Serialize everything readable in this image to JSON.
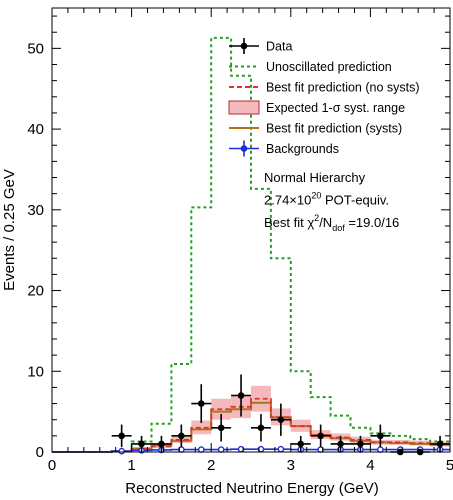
{
  "chart_data": {
    "type": "histogram",
    "xlabel": "Reconstructed Neutrino Energy (GeV)",
    "ylabel": "Events / 0.25 GeV",
    "xlim": [
      0,
      5
    ],
    "ylim": [
      0,
      55
    ],
    "xticks": [
      0,
      1,
      2,
      3,
      4,
      5
    ],
    "yticks": [
      0,
      10,
      20,
      30,
      40,
      50
    ],
    "bin_width": 0.25,
    "bin_edges": [
      0,
      0.25,
      0.5,
      0.75,
      1.0,
      1.25,
      1.5,
      1.75,
      2.0,
      2.25,
      2.5,
      2.75,
      3.0,
      3.25,
      3.5,
      3.75,
      4.0,
      4.25,
      4.5,
      4.75,
      5.0
    ],
    "series": [
      {
        "name": "Data",
        "style": "points",
        "color": "#000000",
        "x": [
          0.875,
          1.125,
          1.375,
          1.625,
          1.875,
          2.125,
          2.375,
          2.625,
          2.875,
          3.125,
          3.375,
          3.625,
          3.875,
          4.125,
          4.375,
          4.625,
          4.875
        ],
        "y": [
          2.0,
          1.0,
          1.0,
          2.0,
          6.0,
          3.0,
          7.0,
          3.0,
          4.0,
          1.0,
          2.0,
          1.0,
          1.0,
          2.0,
          0.0,
          0.0,
          1.0
        ],
        "yerr": [
          1.4,
          1.0,
          1.0,
          1.4,
          2.4,
          1.7,
          2.6,
          1.7,
          2.0,
          1.0,
          1.4,
          1.0,
          1.0,
          1.4,
          0.0,
          0.0,
          1.0
        ]
      },
      {
        "name": "Unoscillated prediction",
        "style": "step-dashed",
        "color": "#22a022",
        "values": [
          0,
          0,
          0,
          0.1,
          1.3,
          3.5,
          10.9,
          30.3,
          51.3,
          46.6,
          32.6,
          24.0,
          10.0,
          6.8,
          4.5,
          3.0,
          2.3,
          2.0,
          1.6,
          1.3
        ]
      },
      {
        "name": "Best fit prediction (no systs)",
        "style": "step-dashed",
        "color": "#e23030",
        "values": [
          0,
          0,
          0,
          0.1,
          0.4,
          0.7,
          1.5,
          3.0,
          5.3,
          5.6,
          6.6,
          4.3,
          3.2,
          2.1,
          1.8,
          1.5,
          1.2,
          1.2,
          1.1,
          1.0
        ]
      },
      {
        "name": "Expected 1-σ syst. range",
        "style": "band",
        "color": "#f4b8bd",
        "low": [
          0,
          0,
          0,
          0,
          0.2,
          0.5,
          1.1,
          2.2,
          4.0,
          4.2,
          5.0,
          3.3,
          2.5,
          1.6,
          1.4,
          1.1,
          0.9,
          0.9,
          0.8,
          0.7
        ],
        "high": [
          0,
          0,
          0,
          0.2,
          0.6,
          1.0,
          1.9,
          3.9,
          6.6,
          7.1,
          8.2,
          5.4,
          4.0,
          2.7,
          2.3,
          1.9,
          1.5,
          1.5,
          1.4,
          1.3
        ]
      },
      {
        "name": "Best fit prediction (systs)",
        "style": "step-solid",
        "color": "#a8761c",
        "values": [
          0,
          0,
          0,
          0.1,
          0.4,
          0.8,
          1.4,
          2.8,
          5.0,
          5.3,
          6.1,
          4.3,
          3.2,
          2.1,
          1.7,
          1.4,
          1.2,
          1.1,
          1.0,
          0.9
        ]
      },
      {
        "name": "Backgrounds",
        "style": "points-step",
        "color": "#1e2fd8",
        "values": [
          0,
          0,
          0,
          0.1,
          0.2,
          0.25,
          0.3,
          0.3,
          0.3,
          0.35,
          0.35,
          0.35,
          0.3,
          0.3,
          0.3,
          0.3,
          0.3,
          0.3,
          0.3,
          0.3
        ]
      }
    ],
    "legend_position": "top-right",
    "annotations": [
      {
        "text": "Normal Hierarchy"
      },
      {
        "text": "2.74×10",
        "sup": "20",
        "tail": " POT-equiv."
      },
      {
        "text": "Best fit χ",
        "sup": "2",
        "mid": "/N",
        "sub": "dof",
        "tail": " =19.0/16"
      }
    ]
  }
}
